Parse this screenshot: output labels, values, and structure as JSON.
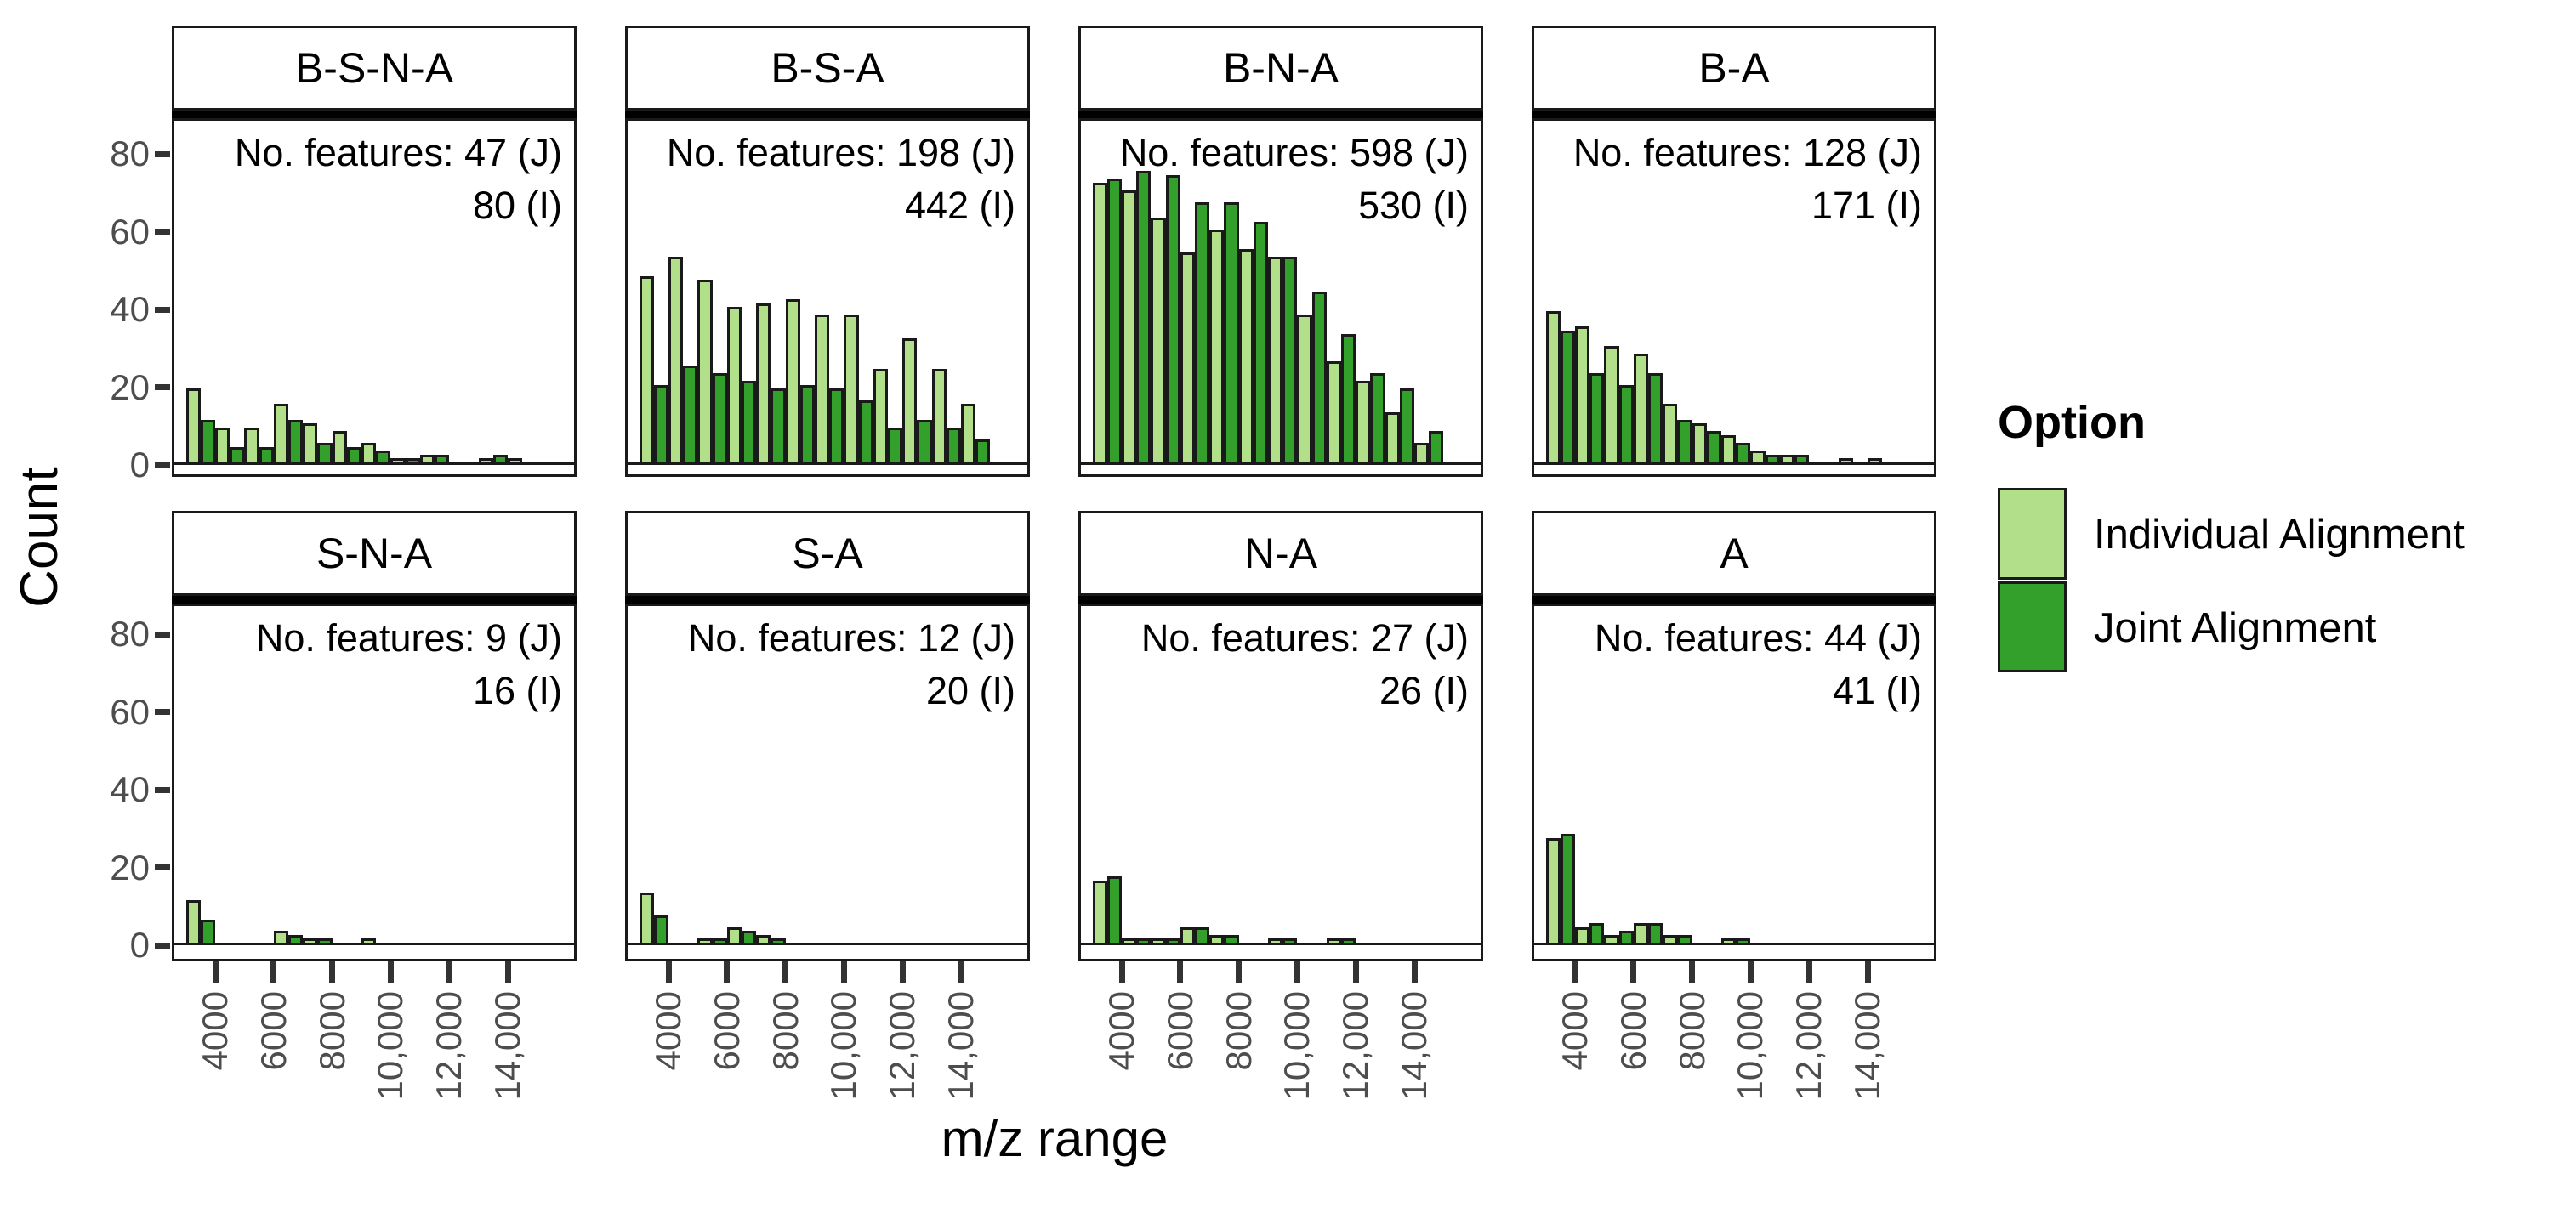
{
  "axes": {
    "y_label": "Count",
    "x_label": "m/z range",
    "y_ticks": [
      "0",
      "20",
      "40",
      "60",
      "80"
    ],
    "x_ticks": [
      "4000",
      "6000",
      "8000",
      "10,000",
      "12,000",
      "14,000"
    ]
  },
  "legend": {
    "title": "Option",
    "items": [
      {
        "label": "Individual Alignment",
        "color": "#B2DF8A"
      },
      {
        "label": "Joint Alignment",
        "color": "#33A02C"
      }
    ]
  },
  "chart_data": {
    "type": "bar",
    "subtype": "faceted-dodged-histogram",
    "xlabel": "m/z range",
    "ylabel": "Count",
    "ylim": [
      0,
      92
    ],
    "y_tick_values": [
      0,
      20,
      40,
      60,
      80
    ],
    "x_tick_values": [
      4000,
      6000,
      8000,
      10000,
      12000,
      14000
    ],
    "bin_edges": [
      3000,
      4000,
      5000,
      6000,
      7000,
      8000,
      9000,
      10000,
      11000,
      12000,
      13000,
      14000,
      15000
    ],
    "series_names": [
      "Individual Alignment",
      "Joint Alignment"
    ],
    "colors": {
      "individual": "#B2DF8A",
      "joint": "#33A02C"
    },
    "legend_position": "right",
    "grid": false,
    "facets": [
      {
        "title": "B-S-N-A",
        "annotation": [
          "No. features: 47 (J)",
          "80 (I)"
        ],
        "joint_total": 47,
        "individual_total": 80,
        "individual": [
          19,
          9,
          9,
          15,
          10,
          8,
          5,
          1,
          2,
          0,
          1,
          1
        ],
        "joint": [
          11,
          4,
          4,
          11,
          5,
          4,
          3,
          1,
          2,
          0,
          2,
          0
        ]
      },
      {
        "title": "B-S-A",
        "annotation": [
          "No. features: 198 (J)",
          "442 (I)"
        ],
        "joint_total": 198,
        "individual_total": 442,
        "individual": [
          48,
          53,
          47,
          40,
          41,
          42,
          38,
          38,
          24,
          32,
          24,
          15
        ],
        "joint": [
          20,
          25,
          23,
          21,
          19,
          20,
          19,
          16,
          9,
          11,
          9,
          6
        ]
      },
      {
        "title": "B-N-A",
        "annotation": [
          "No. features: 598 (J)",
          "530 (I)"
        ],
        "joint_total": 598,
        "individual_total": 530,
        "individual": [
          72,
          70,
          63,
          54,
          60,
          55,
          53,
          38,
          26,
          21,
          13,
          5
        ],
        "joint": [
          73,
          75,
          74,
          67,
          67,
          62,
          53,
          44,
          33,
          23,
          19,
          8
        ]
      },
      {
        "title": "B-A",
        "annotation": [
          "No. features: 128 (J)",
          "171 (I)"
        ],
        "joint_total": 128,
        "individual_total": 171,
        "individual": [
          39,
          35,
          30,
          28,
          15,
          10,
          7,
          3,
          2,
          0,
          1,
          1
        ],
        "joint": [
          34,
          23,
          20,
          23,
          11,
          8,
          5,
          2,
          2,
          0,
          0,
          0
        ]
      },
      {
        "title": "S-N-A",
        "annotation": [
          "No. features: 9 (J)",
          "16 (I)"
        ],
        "joint_total": 9,
        "individual_total": 16,
        "individual": [
          11,
          0,
          0,
          3,
          1,
          0,
          1,
          0,
          0,
          0,
          0,
          0
        ],
        "joint": [
          6,
          0,
          0,
          2,
          1,
          0,
          0,
          0,
          0,
          0,
          0,
          0
        ]
      },
      {
        "title": "S-A",
        "annotation": [
          "No. features: 12 (J)",
          "20 (I)"
        ],
        "joint_total": 12,
        "individual_total": 20,
        "individual": [
          13,
          0,
          1,
          4,
          2,
          0,
          0,
          0,
          0,
          0,
          0,
          0
        ],
        "joint": [
          7,
          0,
          1,
          3,
          1,
          0,
          0,
          0,
          0,
          0,
          0,
          0
        ]
      },
      {
        "title": "N-A",
        "annotation": [
          "No. features: 27 (J)",
          "26 (I)"
        ],
        "joint_total": 27,
        "individual_total": 26,
        "individual": [
          16,
          1,
          1,
          4,
          2,
          0,
          1,
          0,
          1,
          0,
          0,
          0
        ],
        "joint": [
          17,
          1,
          1,
          4,
          2,
          0,
          1,
          0,
          1,
          0,
          0,
          0
        ]
      },
      {
        "title": "A",
        "annotation": [
          "No. features: 44 (J)",
          "41 (I)"
        ],
        "joint_total": 44,
        "individual_total": 41,
        "individual": [
          27,
          4,
          2,
          5,
          2,
          0,
          1,
          0,
          0,
          0,
          0,
          0
        ],
        "joint": [
          28,
          5,
          3,
          5,
          2,
          0,
          1,
          0,
          0,
          0,
          0,
          0
        ]
      }
    ]
  }
}
